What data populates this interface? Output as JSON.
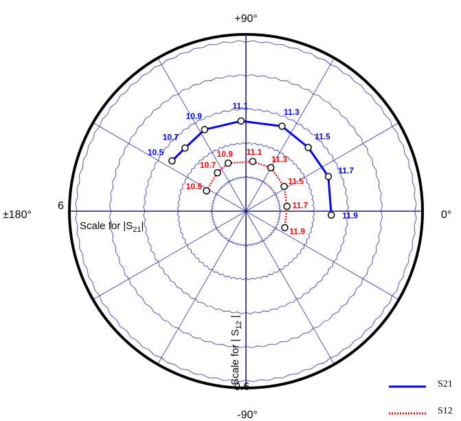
{
  "chart_data": {
    "type": "polar",
    "angle_labels": {
      "top": "+90°",
      "bottom": "-90°",
      "left": "±180°",
      "right": "0°"
    },
    "scale_labels": {
      "s21_max": "6",
      "s12_max": "0.6"
    },
    "axis_texts": {
      "s21_scale": "Scale for |S21|",
      "s12_scale": "Scale for | S12 |"
    },
    "grid": {
      "rings": 5,
      "spokes_deg": 30
    },
    "series": [
      {
        "name": "S21",
        "color": "#0000ff",
        "line_style": "solid",
        "scale_max": 6,
        "points": [
          {
            "freq": "10.5",
            "angle_deg": 145.8,
            "magnitude": 3.16
          },
          {
            "freq": "10.7",
            "angle_deg": 134.0,
            "magnitude": 3.1
          },
          {
            "freq": "10.9",
            "angle_deg": 116.9,
            "magnitude": 3.23
          },
          {
            "freq": "11.1",
            "angle_deg": 93.1,
            "magnitude": 3.19
          },
          {
            "freq": "11.3",
            "angle_deg": 67.0,
            "magnitude": 3.26
          },
          {
            "freq": "11.5",
            "angle_deg": 45.6,
            "magnitude": 3.15
          },
          {
            "freq": "11.7",
            "angle_deg": 22.8,
            "magnitude": 3.16
          },
          {
            "freq": "11.9",
            "angle_deg": -2.6,
            "magnitude": 3.02
          }
        ]
      },
      {
        "name": "S12",
        "color": "#ff0000",
        "line_style": "dotted",
        "scale_max": 0.6,
        "points": [
          {
            "freq": "10.5",
            "angle_deg": 152.7,
            "magnitude": 0.157
          },
          {
            "freq": "10.7",
            "angle_deg": 126.6,
            "magnitude": 0.169
          },
          {
            "freq": "10.9",
            "angle_deg": 110.3,
            "magnitude": 0.181
          },
          {
            "freq": "11.1",
            "angle_deg": 82.2,
            "magnitude": 0.177
          },
          {
            "freq": "11.3",
            "angle_deg": 60.2,
            "magnitude": 0.177
          },
          {
            "freq": "11.5",
            "angle_deg": 32.9,
            "magnitude": 0.161
          },
          {
            "freq": "11.7",
            "angle_deg": 6.7,
            "magnitude": 0.146
          },
          {
            "freq": "11.9",
            "angle_deg": -23.0,
            "magnitude": 0.149
          }
        ]
      }
    ]
  }
}
